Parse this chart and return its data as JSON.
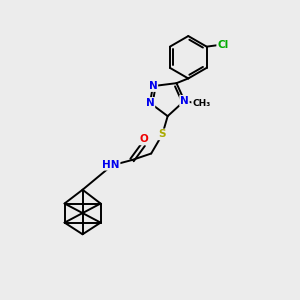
{
  "bg_color": "#ececec",
  "bond_color": "#000000",
  "atom_colors": {
    "N": "#0000ee",
    "O": "#ee0000",
    "S": "#aaaa00",
    "Cl": "#00aa00",
    "H": "#606060",
    "C": "#000000"
  },
  "font_size": 7.5,
  "bond_width": 1.4,
  "figsize": [
    3.0,
    3.0
  ],
  "dpi": 100
}
